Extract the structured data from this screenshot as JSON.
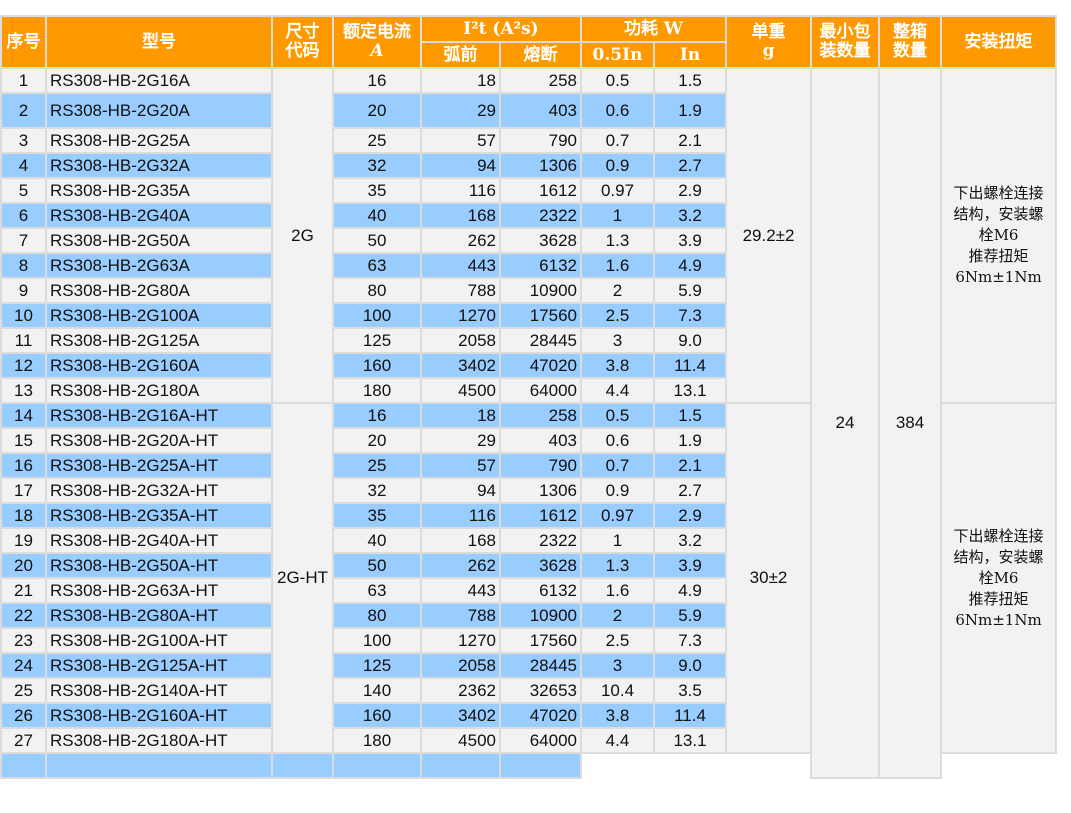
{
  "header": {
    "no": "序号",
    "model": "型号",
    "size": [
      "尺寸",
      "代码"
    ],
    "current": [
      "额定电流",
      "A"
    ],
    "i2t": "I²t (A²s)",
    "prearc": "弧前",
    "melt": "熔断",
    "power": "功耗 W",
    "p05": "0.5In",
    "p1": "In",
    "weight": [
      "单重",
      "g"
    ],
    "minpack": [
      "最小包",
      "装数量"
    ],
    "box": [
      "整箱",
      "数量"
    ],
    "torque": "安装扭矩"
  },
  "colors": {
    "header": "#ff9900",
    "stripe": "#99ccff",
    "row": "#f2f2f2"
  },
  "groups": [
    {
      "size": "2G",
      "weight": "29.2±2",
      "torque": "下出螺栓连接\n结构，安装螺\n栓M6\n推荐扭矩\n6Nm±1Nm"
    },
    {
      "size": "2G-HT",
      "weight": "30±2",
      "torque": "下出螺栓连接\n结构，安装螺\n栓M6\n推荐扭矩\n6Nm±1Nm"
    }
  ],
  "minpack": "24",
  "box": "384",
  "rows": [
    [
      "1",
      "RS308-HB-2G16A",
      "16",
      "18",
      "258",
      "0.5",
      "1.5"
    ],
    [
      "2",
      "RS308-HB-2G20A",
      "20",
      "29",
      "403",
      "0.6",
      "1.9"
    ],
    [
      "3",
      "RS308-HB-2G25A",
      "25",
      "57",
      "790",
      "0.7",
      "2.1"
    ],
    [
      "4",
      "RS308-HB-2G32A",
      "32",
      "94",
      "1306",
      "0.9",
      "2.7"
    ],
    [
      "5",
      "RS308-HB-2G35A",
      "35",
      "116",
      "1612",
      "0.97",
      "2.9"
    ],
    [
      "6",
      "RS308-HB-2G40A",
      "40",
      "168",
      "2322",
      "1",
      "3.2"
    ],
    [
      "7",
      "RS308-HB-2G50A",
      "50",
      "262",
      "3628",
      "1.3",
      "3.9"
    ],
    [
      "8",
      "RS308-HB-2G63A",
      "63",
      "443",
      "6132",
      "1.6",
      "4.9"
    ],
    [
      "9",
      "RS308-HB-2G80A",
      "80",
      "788",
      "10900",
      "2",
      "5.9"
    ],
    [
      "10",
      "RS308-HB-2G100A",
      "100",
      "1270",
      "17560",
      "2.5",
      "7.3"
    ],
    [
      "11",
      "RS308-HB-2G125A",
      "125",
      "2058",
      "28445",
      "3",
      "9.0"
    ],
    [
      "12",
      "RS308-HB-2G160A",
      "160",
      "3402",
      "47020",
      "3.8",
      "11.4"
    ],
    [
      "13",
      "RS308-HB-2G180A",
      "180",
      "4500",
      "64000",
      "4.4",
      "13.1"
    ],
    [
      "14",
      "RS308-HB-2G16A-HT",
      "16",
      "18",
      "258",
      "0.5",
      "1.5"
    ],
    [
      "15",
      "RS308-HB-2G20A-HT",
      "20",
      "29",
      "403",
      "0.6",
      "1.9"
    ],
    [
      "16",
      "RS308-HB-2G25A-HT",
      "25",
      "57",
      "790",
      "0.7",
      "2.1"
    ],
    [
      "17",
      "RS308-HB-2G32A-HT",
      "32",
      "94",
      "1306",
      "0.9",
      "2.7"
    ],
    [
      "18",
      "RS308-HB-2G35A-HT",
      "35",
      "116",
      "1612",
      "0.97",
      "2.9"
    ],
    [
      "19",
      "RS308-HB-2G40A-HT",
      "40",
      "168",
      "2322",
      "1",
      "3.2"
    ],
    [
      "20",
      "RS308-HB-2G50A-HT",
      "50",
      "262",
      "3628",
      "1.3",
      "3.9"
    ],
    [
      "21",
      "RS308-HB-2G63A-HT",
      "63",
      "443",
      "6132",
      "1.6",
      "4.9"
    ],
    [
      "22",
      "RS308-HB-2G80A-HT",
      "80",
      "788",
      "10900",
      "2",
      "5.9"
    ],
    [
      "23",
      "RS308-HB-2G100A-HT",
      "100",
      "1270",
      "17560",
      "2.5",
      "7.3"
    ],
    [
      "24",
      "RS308-HB-2G125A-HT",
      "125",
      "2058",
      "28445",
      "3",
      "9.0"
    ],
    [
      "25",
      "RS308-HB-2G140A-HT",
      "140",
      "2362",
      "32653",
      "10.4",
      "3.5"
    ],
    [
      "26",
      "RS308-HB-2G160A-HT",
      "160",
      "3402",
      "47020",
      "3.8",
      "11.4"
    ],
    [
      "27",
      "RS308-HB-2G180A-HT",
      "180",
      "4500",
      "64000",
      "4.4",
      "13.1"
    ]
  ]
}
